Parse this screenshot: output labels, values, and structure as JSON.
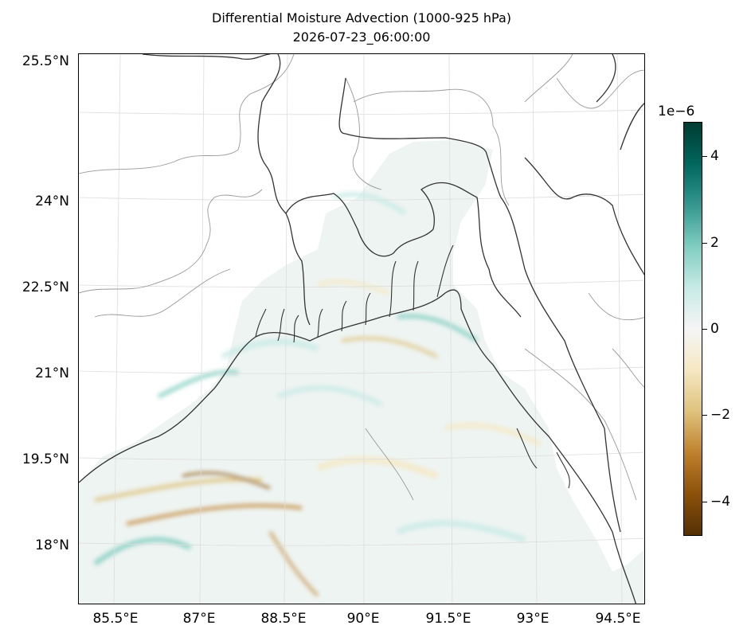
{
  "title": {
    "line1": "Differential Moisture Advection (1000-925 hPa)",
    "line2": "2026-07-23_06:00:00"
  },
  "map": {
    "lat_labels": [
      "25.5°N",
      "24°N",
      "22.5°N",
      "21°N",
      "19.5°N",
      "18°N"
    ],
    "lon_labels": [
      "85.5°E",
      "87°E",
      "88.5°E",
      "90°E",
      "91.5°E",
      "93°E",
      "94.5°E"
    ],
    "lat_range": [
      17.0,
      26.5
    ],
    "lon_range": [
      84.85,
      94.85
    ],
    "colors": {
      "coast": "#333333",
      "border": "#999999",
      "grid": "#dddddd"
    }
  },
  "colorbar": {
    "exponent": "1e−6",
    "ticks": [
      "4",
      "2",
      "0",
      "−2",
      "−4"
    ],
    "tick_values": [
      4,
      2,
      0,
      -2,
      -4
    ],
    "range": [
      -4.8,
      4.8
    ],
    "colormap": "BrBG",
    "colors": [
      "#543005",
      "#8c510a",
      "#bf812d",
      "#dfc27d",
      "#f6e8c3",
      "#f5f5f5",
      "#c7eae5",
      "#80cdc1",
      "#35978f",
      "#01665e",
      "#003c30"
    ]
  }
}
